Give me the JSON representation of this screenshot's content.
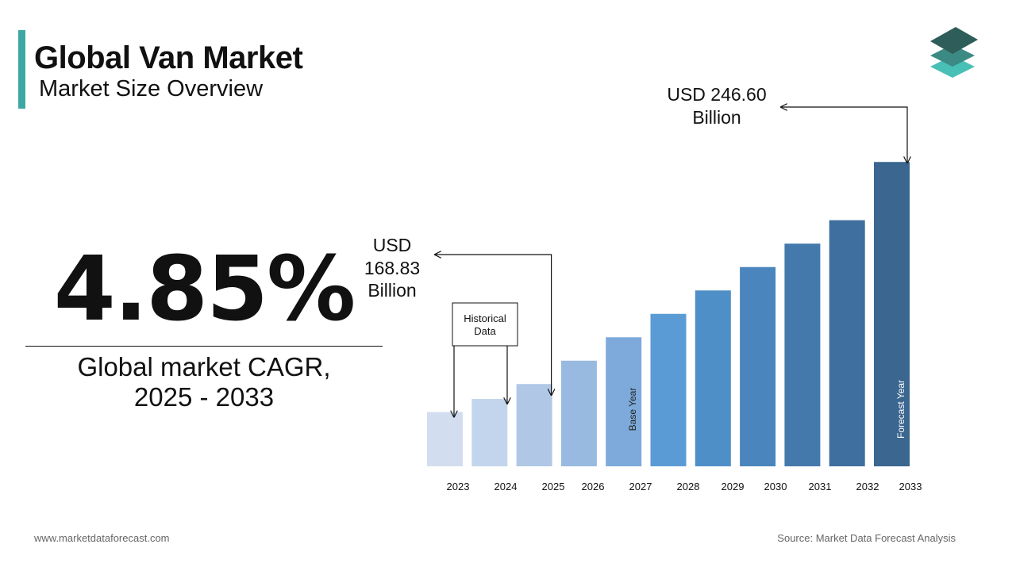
{
  "header": {
    "title": "Global Van Market",
    "subtitle": "Market Size Overview"
  },
  "kpi": {
    "value": "4.85%",
    "caption_line1": "Global market CAGR,",
    "caption_line2": "2025 - 2033"
  },
  "footer": {
    "website": "www.marketdataforecast.com",
    "source": "Source: Market Data Forecast Analysis"
  },
  "colors": {
    "accent": "#3fa7a3",
    "logo_top": "#2f5d59",
    "logo_mid": "#3b8a84",
    "logo_bottom": "#49c0b6"
  },
  "icons": {
    "logo": "stacked-layers-icon"
  },
  "chart_data": {
    "type": "bar",
    "categories": [
      "2023",
      "2024",
      "2025",
      "2026",
      "2027",
      "2028",
      "2029",
      "2030",
      "2031",
      "2032",
      "2033"
    ],
    "values": [
      159.0,
      163.6,
      168.83,
      177.0,
      185.2,
      193.4,
      201.6,
      209.8,
      218.0,
      226.2,
      246.6
    ],
    "ylim": [
      140,
      250
    ],
    "bar_colors": [
      "#d2deef",
      "#c3d5ec",
      "#b0c8e6",
      "#99bae0",
      "#7eaadb",
      "#5b9bd5",
      "#4f8fc7",
      "#4a86bd",
      "#4479ac",
      "#3e6f9f",
      "#3a6690"
    ],
    "vertical_labels": [
      {
        "category": "2027",
        "text": "Base Year",
        "color": "#222222"
      },
      {
        "category": "2033",
        "text": "Forecast Year",
        "color": "#ffffff"
      }
    ],
    "annotations": [
      {
        "category": "2025",
        "lines": [
          "USD",
          "168.83",
          "Billion"
        ]
      },
      {
        "category": "2033",
        "lines": [
          "USD 246.60",
          "Billion"
        ]
      }
    ],
    "box": {
      "lines": [
        "Historical",
        "Data"
      ],
      "targets": [
        "2023",
        "2024"
      ]
    }
  }
}
